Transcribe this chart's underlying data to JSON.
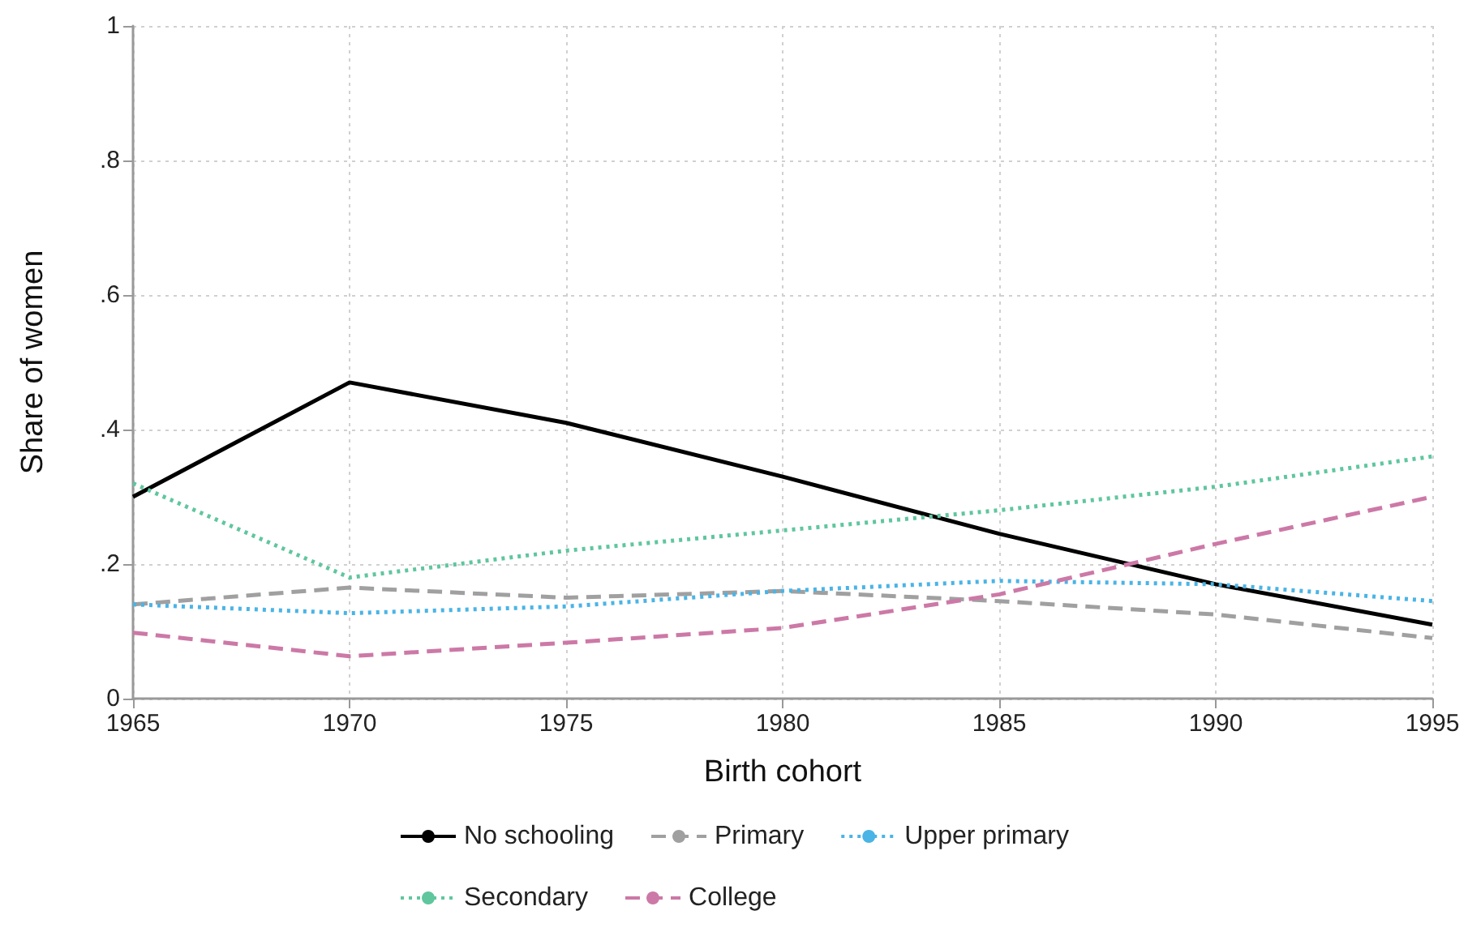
{
  "chart_data": {
    "type": "line",
    "xlabel": "Birth cohort",
    "ylabel": "Share of women",
    "x": [
      1965,
      1970,
      1975,
      1980,
      1985,
      1990,
      1995
    ],
    "xlim": [
      1965,
      1995
    ],
    "xticks": [
      1965,
      1970,
      1975,
      1980,
      1985,
      1990,
      1995
    ],
    "ylim": [
      0,
      1
    ],
    "yticks": [
      0,
      {
        "value": 0.2,
        "label": ".2"
      },
      {
        "value": 0.4,
        "label": ".4"
      },
      {
        "value": 0.6,
        "label": ".6"
      },
      {
        "value": 0.8,
        "label": ".8"
      },
      1
    ],
    "grid": true,
    "legend": "bottom",
    "marker": "none",
    "series": [
      {
        "name": "No schooling",
        "color": "#000000",
        "line_style": "solid",
        "values": [
          0.3,
          0.47,
          0.41,
          0.33,
          0.245,
          0.17,
          0.11
        ]
      },
      {
        "name": "Primary",
        "color": "#a0a0a0",
        "line_style": "dashed",
        "values": [
          0.14,
          0.165,
          0.15,
          0.16,
          0.145,
          0.125,
          0.09
        ]
      },
      {
        "name": "Upper primary",
        "color": "#4ab4e6",
        "line_style": "dotted",
        "values": [
          0.14,
          0.127,
          0.137,
          0.16,
          0.175,
          0.17,
          0.145
        ]
      },
      {
        "name": "Secondary",
        "color": "#5fc69e",
        "line_style": "dotted",
        "values": [
          0.32,
          0.18,
          0.22,
          0.25,
          0.28,
          0.315,
          0.36
        ]
      },
      {
        "name": "College",
        "color": "#cc79a7",
        "line_style": "dashed",
        "values": [
          0.098,
          0.063,
          0.083,
          0.105,
          0.155,
          0.23,
          0.3
        ]
      }
    ]
  }
}
